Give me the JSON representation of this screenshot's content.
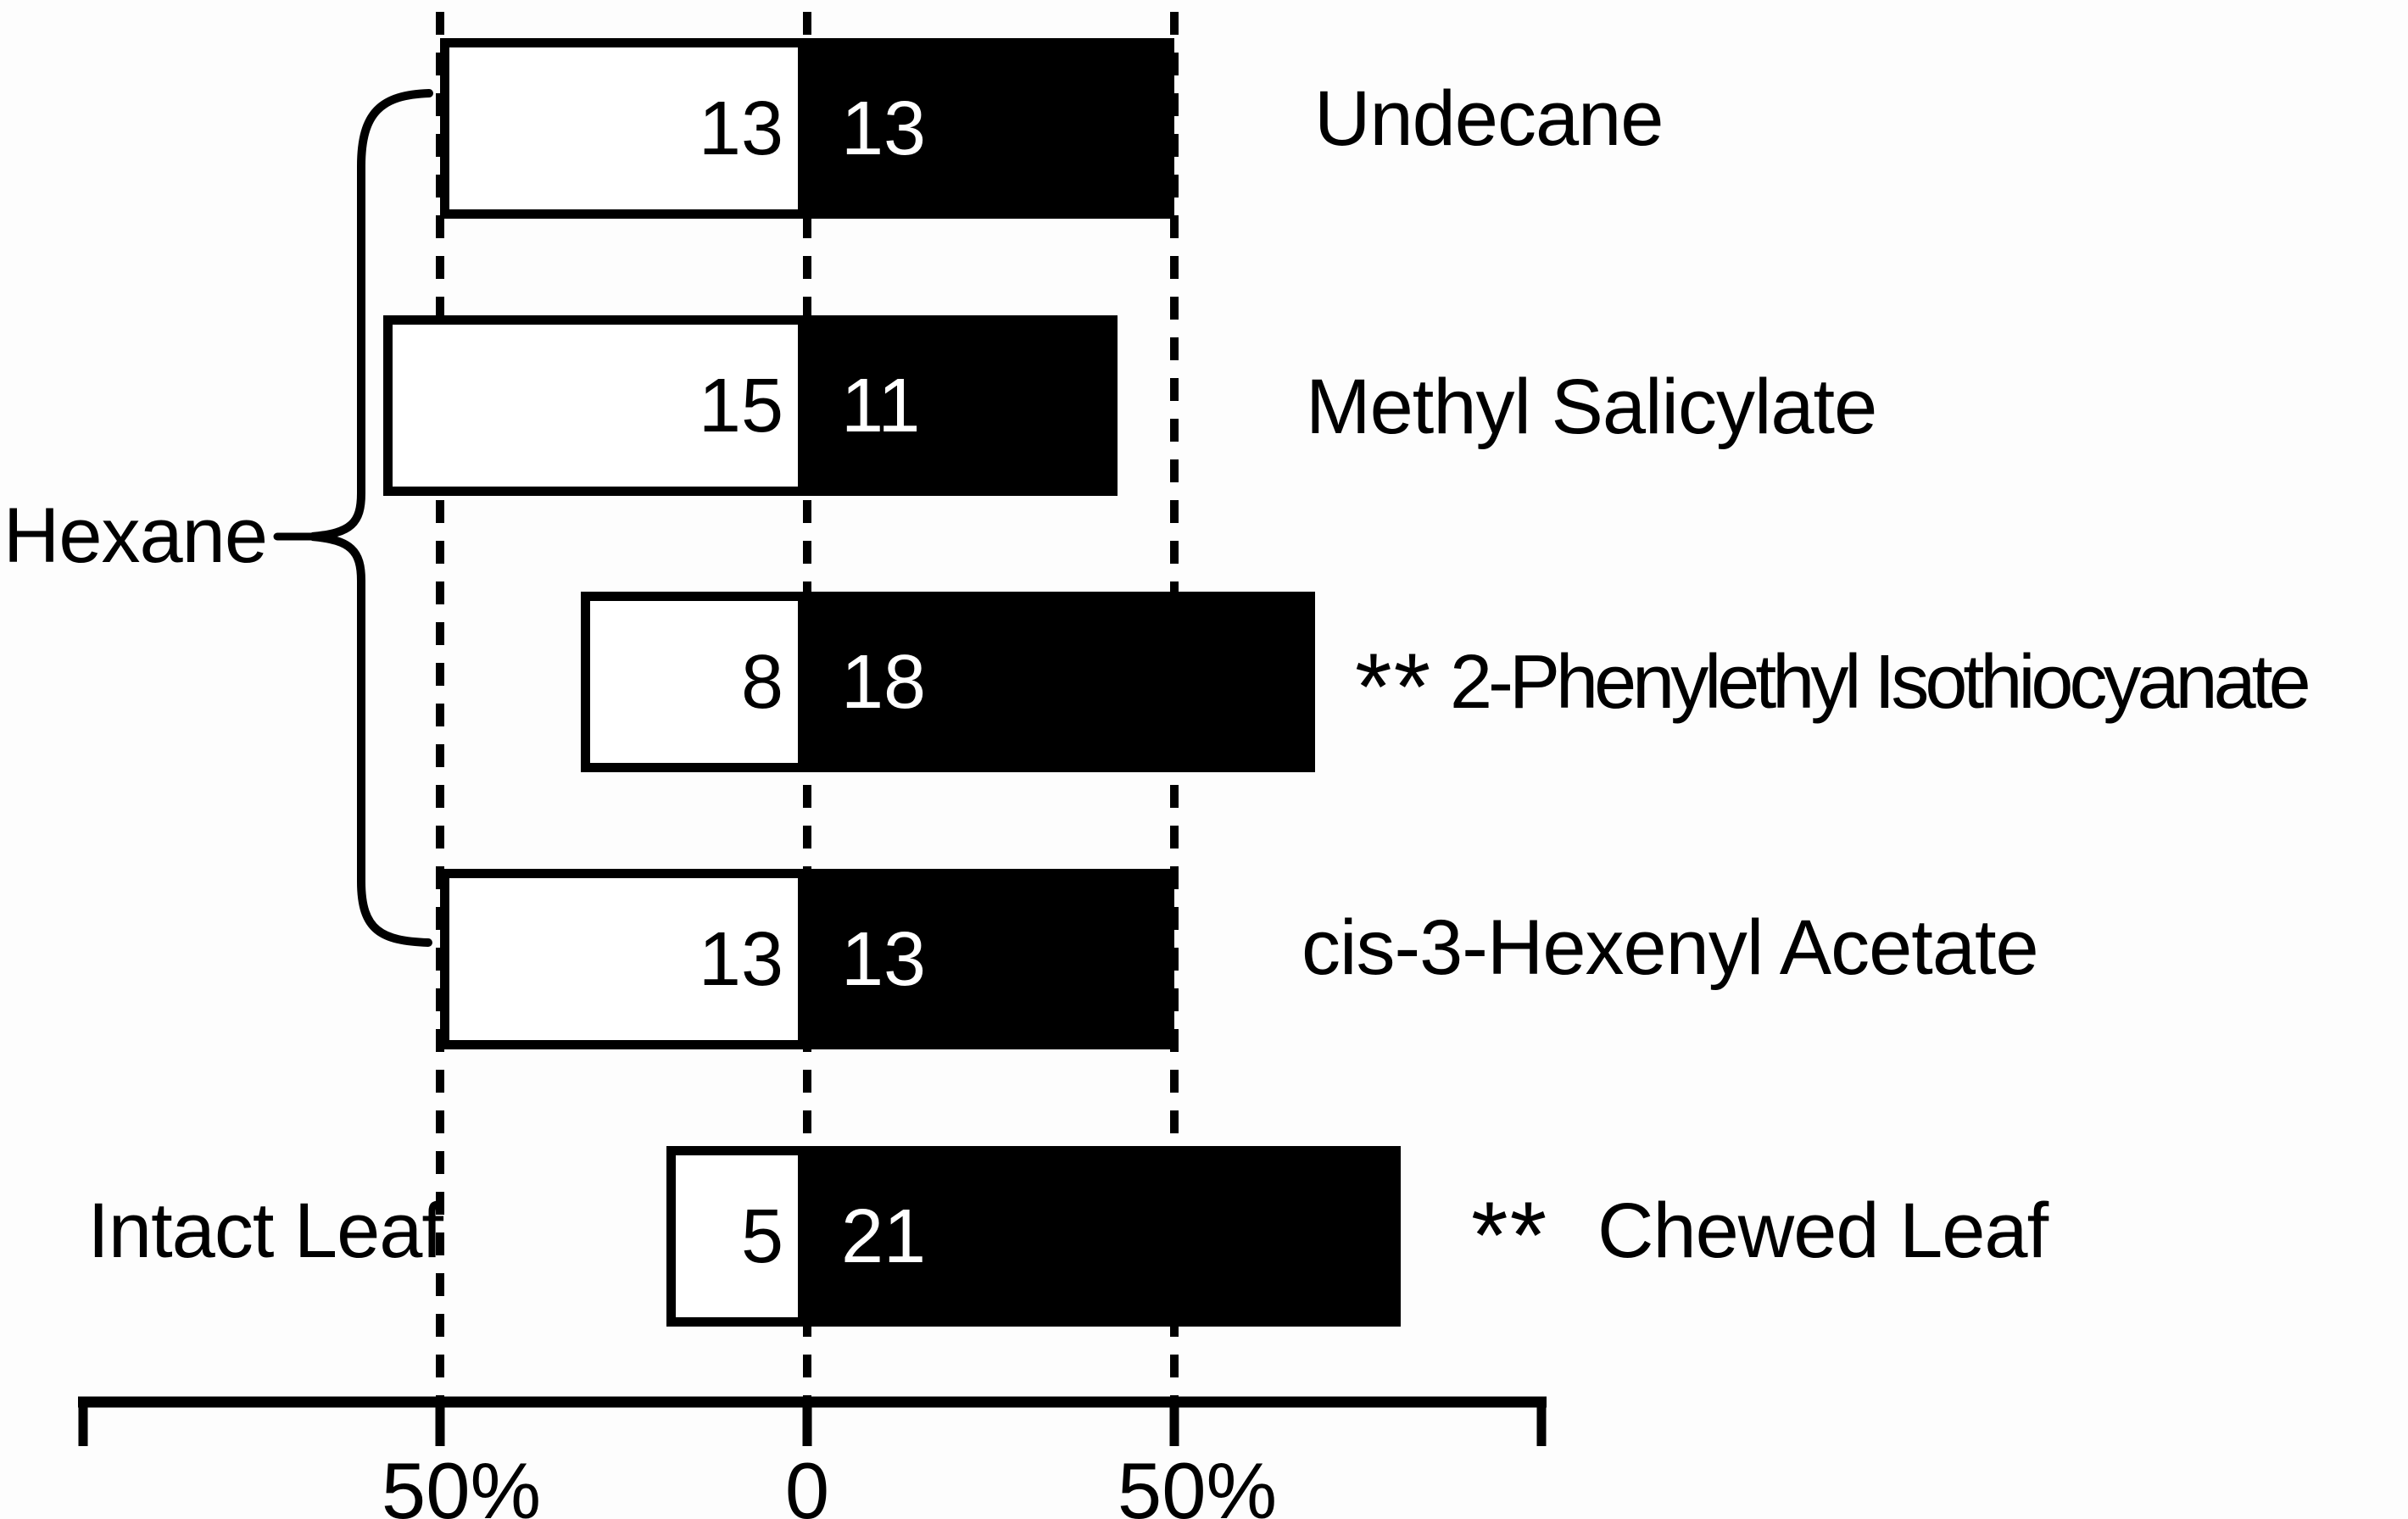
{
  "chart_data": {
    "type": "diverging-bar",
    "title": "",
    "axis": {
      "tick_labels": [
        "50%",
        "0",
        "50%"
      ],
      "tick_values": [
        -50,
        0,
        50
      ],
      "range_pct": [
        -100,
        100
      ],
      "grid": "dashed vertical lines at -50, 0 and +50"
    },
    "left_labels": {
      "group_label": "Hexane",
      "group_row_indices": [
        0,
        1,
        2,
        3
      ],
      "single_label": "Intact Leaf",
      "single_row_index": 4
    },
    "rows": [
      {
        "right_label": "Undecane",
        "significance": "",
        "left_count": "13",
        "right_count": "13",
        "left_pct": 50.0,
        "right_pct": 50.0
      },
      {
        "right_label": "Methyl Salicylate",
        "significance": "",
        "left_count": "15",
        "right_count": "11",
        "left_pct": 57.7,
        "right_pct": 42.3
      },
      {
        "right_label": "2-Phenylethyl Isothiocyanate",
        "significance": "**",
        "left_count": "8",
        "right_count": "18",
        "left_pct": 30.8,
        "right_pct": 69.2
      },
      {
        "right_label": "cis-3-Hexenyl Acetate",
        "significance": "",
        "left_count": "13",
        "right_count": "13",
        "left_pct": 50.0,
        "right_pct": 50.0
      },
      {
        "right_label": "Chewed Leaf",
        "significance": "**",
        "left_count": "5",
        "right_count": "21",
        "left_pct": 19.2,
        "right_pct": 80.8
      }
    ]
  },
  "colors": {
    "background": "#fdfdfd",
    "ink": "#000000",
    "left_bar_fill": "#ffffff",
    "right_bar_fill": "#000000",
    "count_on_white": "#000000",
    "count_on_black": "#ffffff"
  }
}
